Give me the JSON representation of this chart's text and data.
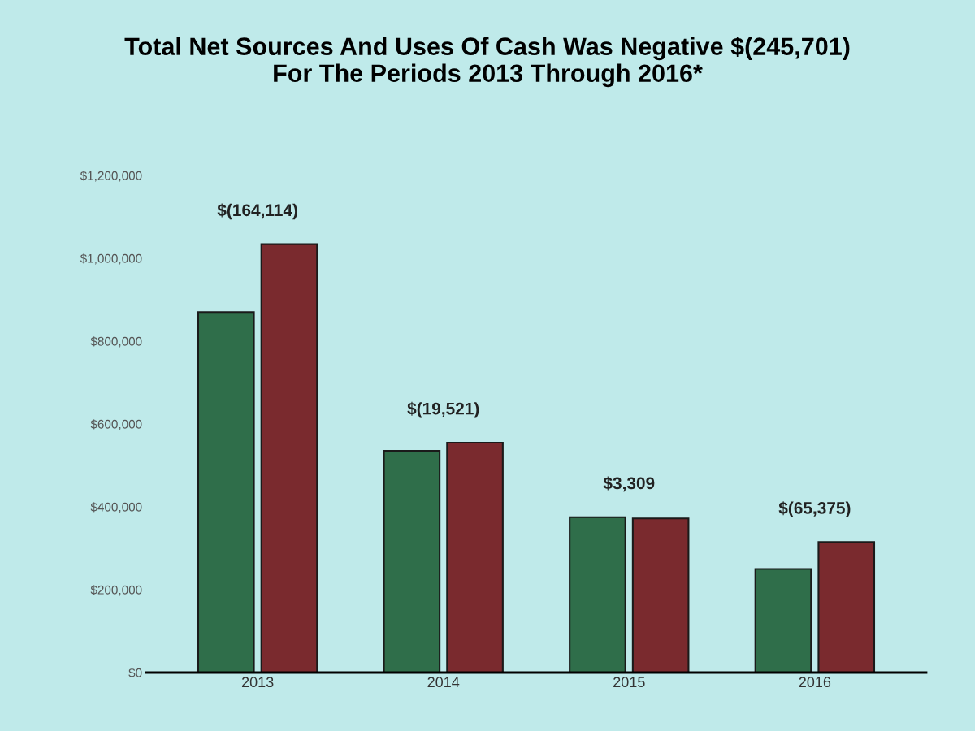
{
  "chart_data": {
    "type": "bar",
    "title": "Total Net Sources And Uses Of Cash Was Negative $(245,701)\nFor The Periods 2013 Through 2016*",
    "categories": [
      "2013",
      "2014",
      "2015",
      "2016"
    ],
    "series": [
      {
        "color": "#2f6e4a",
        "values": [
          870000,
          535000,
          375000,
          250000
        ]
      },
      {
        "color": "#7a2a2e",
        "values": [
          1034000,
          555000,
          372000,
          315000
        ]
      }
    ],
    "ylim": [
      0,
      1200000
    ],
    "yticks": [
      {
        "value": 0,
        "label": "$0"
      },
      {
        "value": 200000,
        "label": "$200,000"
      },
      {
        "value": 400000,
        "label": "$400,000"
      },
      {
        "value": 600000,
        "label": "$600,000"
      },
      {
        "value": 800000,
        "label": "$800,000"
      },
      {
        "value": 1000000,
        "label": "$1,000,000"
      },
      {
        "value": 1200000,
        "label": "$1,200,000"
      }
    ],
    "annotations": [
      {
        "text": "$(164,114)",
        "x": "2013",
        "y": 1034000
      },
      {
        "text": "$(19,521)",
        "x": "2014",
        "y": 555000
      },
      {
        "text": "$3,309",
        "x": "2015",
        "y": 375000
      },
      {
        "text": "$(65,375)",
        "x": "2016",
        "y": 315000
      }
    ],
    "grid": false,
    "legend": false
  }
}
